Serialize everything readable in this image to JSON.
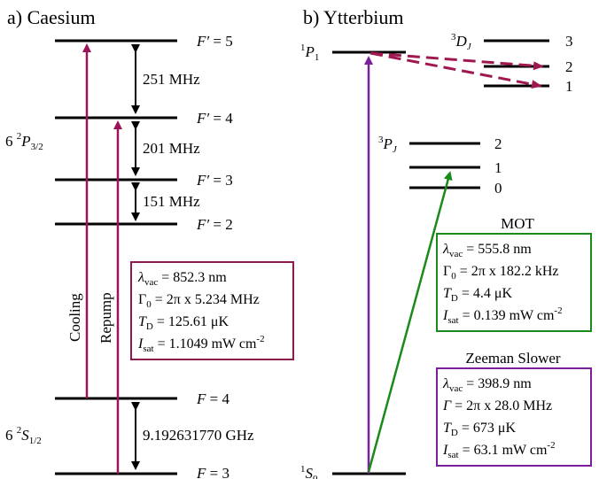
{
  "panels": {
    "caesium": {
      "title": "a) Caesium",
      "excited_state": {
        "prefix": "6",
        "sup": "2",
        "letter": "P",
        "sub": "3/2"
      },
      "ground_state": {
        "prefix": "6",
        "sup": "2",
        "letter": "S",
        "sub": "1/2"
      },
      "levels": [
        {
          "name": "F′",
          "value": "5"
        },
        {
          "name": "F′",
          "value": "4"
        },
        {
          "name": "F′",
          "value": "3"
        },
        {
          "name": "F′",
          "value": "2"
        },
        {
          "name": "F",
          "value": "4"
        },
        {
          "name": "F",
          "value": "3"
        }
      ],
      "splittings": [
        "251 MHz",
        "201 MHz",
        "151 MHz",
        "9.192631770 GHz"
      ],
      "arrows": {
        "cooling": "Cooling",
        "repump": "Repump"
      },
      "box": {
        "lambda": "852.3 nm",
        "gamma": "2π x 5.234 MHz",
        "td": "125.61 μK",
        "isat": "1.1049 mW cm",
        "isat_exp": "-2"
      }
    },
    "ytterbium": {
      "title": "b) Ytterbium",
      "p1": {
        "sup": "1",
        "letter": "P",
        "sub": "1"
      },
      "s0": {
        "sup": "1",
        "letter": "S",
        "sub": "0"
      },
      "pj": {
        "sup": "3",
        "letter": "P",
        "sub": "J",
        "levels": [
          "2",
          "1",
          "0"
        ]
      },
      "dj": {
        "sup": "3",
        "letter": "D",
        "sub": "J",
        "levels": [
          "3",
          "2",
          "1"
        ]
      },
      "mot_box": {
        "heading": "MOT",
        "lambda": "555.8 nm",
        "gamma": "2π x 182.2 kHz",
        "td": "4.4 μK",
        "isat": "0.139 mW cm",
        "isat_exp": "-2"
      },
      "zs_box": {
        "heading": "Zeeman Slower",
        "lambda": "398.9 nm",
        "gamma": "2π x 28.0 MHz",
        "td": "673 μK",
        "isat": "63.1 mW cm",
        "isat_exp": "-2"
      }
    }
  },
  "colors": {
    "caesium_arrow": "#9c1458",
    "caesium_box": "#8b1b4e",
    "yb_blue": "#7b1f9a",
    "yb_green": "#1a8a1a",
    "yb_dashed": "#a01850"
  }
}
